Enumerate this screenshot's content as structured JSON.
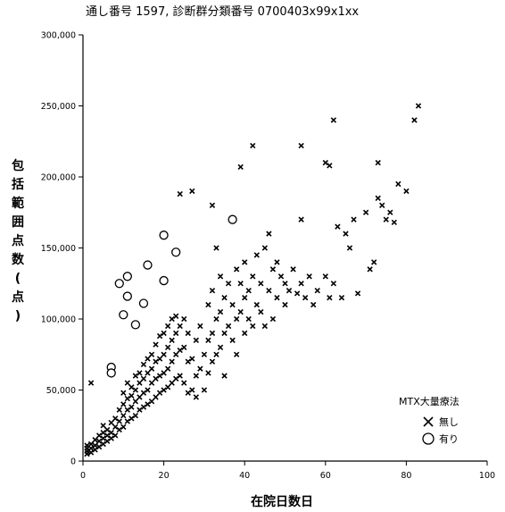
{
  "chart_data": {
    "type": "scatter",
    "title": "通し番号 1597, 診断群分類番号 0700403x99x1xx",
    "xlabel": "在院日数日",
    "ylabel": "包括範囲点数(点)",
    "xlim": [
      0,
      105
    ],
    "ylim": [
      0,
      310000
    ],
    "x_ticks": [
      "0",
      "20",
      "40",
      "60",
      "80",
      "100"
    ],
    "y_ticks": [
      "0",
      "50,000",
      "100,000",
      "150,000",
      "200,000",
      "250,000",
      "300,000"
    ],
    "grid": false,
    "legend": {
      "title": "MTX大量療法",
      "position": "bottom-right"
    },
    "series": [
      {
        "name": "無し",
        "marker": "x",
        "points": [
          [
            2,
            55000
          ],
          [
            1,
            5000
          ],
          [
            1,
            7000
          ],
          [
            1,
            9000
          ],
          [
            1,
            11000
          ],
          [
            2,
            6000
          ],
          [
            2,
            9000
          ],
          [
            2,
            12000
          ],
          [
            3,
            8000
          ],
          [
            3,
            11000
          ],
          [
            3,
            15000
          ],
          [
            4,
            10000
          ],
          [
            4,
            14000
          ],
          [
            4,
            18000
          ],
          [
            5,
            12000
          ],
          [
            5,
            16000
          ],
          [
            5,
            20000
          ],
          [
            5,
            25000
          ],
          [
            6,
            14000
          ],
          [
            6,
            18000
          ],
          [
            6,
            22000
          ],
          [
            7,
            16000
          ],
          [
            7,
            20000
          ],
          [
            7,
            27000
          ],
          [
            8,
            18000
          ],
          [
            8,
            24000
          ],
          [
            8,
            30000
          ],
          [
            9,
            22000
          ],
          [
            9,
            28000
          ],
          [
            9,
            36000
          ],
          [
            10,
            24000
          ],
          [
            10,
            32000
          ],
          [
            10,
            40000
          ],
          [
            10,
            48000
          ],
          [
            11,
            28000
          ],
          [
            11,
            36000
          ],
          [
            11,
            44000
          ],
          [
            11,
            55000
          ],
          [
            12,
            30000
          ],
          [
            12,
            38000
          ],
          [
            12,
            46000
          ],
          [
            12,
            52000
          ],
          [
            13,
            32000
          ],
          [
            13,
            42000
          ],
          [
            13,
            50000
          ],
          [
            13,
            60000
          ],
          [
            14,
            36000
          ],
          [
            14,
            45000
          ],
          [
            14,
            55000
          ],
          [
            14,
            62000
          ],
          [
            15,
            38000
          ],
          [
            15,
            48000
          ],
          [
            15,
            58000
          ],
          [
            15,
            68000
          ],
          [
            16,
            40000
          ],
          [
            16,
            50000
          ],
          [
            16,
            62000
          ],
          [
            16,
            72000
          ],
          [
            17,
            42000
          ],
          [
            17,
            55000
          ],
          [
            17,
            65000
          ],
          [
            17,
            75000
          ],
          [
            18,
            45000
          ],
          [
            18,
            58000
          ],
          [
            18,
            70000
          ],
          [
            18,
            82000
          ],
          [
            19,
            48000
          ],
          [
            19,
            60000
          ],
          [
            19,
            72000
          ],
          [
            19,
            88000
          ],
          [
            20,
            50000
          ],
          [
            20,
            62000
          ],
          [
            20,
            75000
          ],
          [
            20,
            90000
          ],
          [
            21,
            52000
          ],
          [
            21,
            65000
          ],
          [
            21,
            80000
          ],
          [
            21,
            95000
          ],
          [
            22,
            55000
          ],
          [
            22,
            70000
          ],
          [
            22,
            85000
          ],
          [
            22,
            100000
          ],
          [
            23,
            58000
          ],
          [
            23,
            75000
          ],
          [
            23,
            90000
          ],
          [
            23,
            102000
          ],
          [
            24,
            60000
          ],
          [
            24,
            78000
          ],
          [
            24,
            95000
          ],
          [
            25,
            55000
          ],
          [
            25,
            80000
          ],
          [
            25,
            100000
          ],
          [
            26,
            48000
          ],
          [
            26,
            70000
          ],
          [
            26,
            90000
          ],
          [
            27,
            50000
          ],
          [
            27,
            72000
          ],
          [
            28,
            45000
          ],
          [
            28,
            60000
          ],
          [
            28,
            85000
          ],
          [
            29,
            65000
          ],
          [
            29,
            95000
          ],
          [
            30,
            50000
          ],
          [
            30,
            75000
          ],
          [
            31,
            62000
          ],
          [
            31,
            85000
          ],
          [
            31,
            110000
          ],
          [
            32,
            70000
          ],
          [
            32,
            90000
          ],
          [
            32,
            120000
          ],
          [
            33,
            75000
          ],
          [
            33,
            100000
          ],
          [
            33,
            150000
          ],
          [
            34,
            80000
          ],
          [
            34,
            105000
          ],
          [
            34,
            130000
          ],
          [
            35,
            60000
          ],
          [
            35,
            90000
          ],
          [
            35,
            115000
          ],
          [
            36,
            95000
          ],
          [
            36,
            125000
          ],
          [
            37,
            85000
          ],
          [
            37,
            110000
          ],
          [
            38,
            75000
          ],
          [
            38,
            100000
          ],
          [
            38,
            135000
          ],
          [
            39,
            105000
          ],
          [
            39,
            125000
          ],
          [
            40,
            90000
          ],
          [
            40,
            115000
          ],
          [
            40,
            140000
          ],
          [
            41,
            100000
          ],
          [
            41,
            120000
          ],
          [
            42,
            95000
          ],
          [
            42,
            130000
          ],
          [
            43,
            110000
          ],
          [
            43,
            145000
          ],
          [
            44,
            105000
          ],
          [
            44,
            125000
          ],
          [
            45,
            95000
          ],
          [
            45,
            150000
          ],
          [
            46,
            120000
          ],
          [
            46,
            160000
          ],
          [
            47,
            100000
          ],
          [
            47,
            135000
          ],
          [
            48,
            115000
          ],
          [
            48,
            140000
          ],
          [
            49,
            130000
          ],
          [
            50,
            110000
          ],
          [
            50,
            125000
          ],
          [
            51,
            120000
          ],
          [
            52,
            135000
          ],
          [
            53,
            118000
          ],
          [
            54,
            125000
          ],
          [
            55,
            115000
          ],
          [
            56,
            130000
          ],
          [
            57,
            110000
          ],
          [
            58,
            120000
          ],
          [
            60,
            130000
          ],
          [
            61,
            115000
          ],
          [
            62,
            125000
          ],
          [
            63,
            165000
          ],
          [
            64,
            115000
          ],
          [
            65,
            160000
          ],
          [
            66,
            150000
          ],
          [
            67,
            170000
          ],
          [
            68,
            118000
          ],
          [
            70,
            175000
          ],
          [
            71,
            135000
          ],
          [
            72,
            140000
          ],
          [
            73,
            185000
          ],
          [
            74,
            180000
          ],
          [
            75,
            170000
          ],
          [
            76,
            175000
          ],
          [
            77,
            168000
          ],
          [
            78,
            195000
          ],
          [
            80,
            190000
          ],
          [
            82,
            240000
          ],
          [
            83,
            250000
          ],
          [
            24,
            188000
          ],
          [
            27,
            190000
          ],
          [
            32,
            180000
          ],
          [
            39,
            207000
          ],
          [
            42,
            222000
          ],
          [
            54,
            222000
          ],
          [
            60,
            210000
          ],
          [
            61,
            208000
          ],
          [
            62,
            240000
          ],
          [
            73,
            210000
          ],
          [
            54,
            170000
          ]
        ]
      },
      {
        "name": "有り",
        "marker": "o",
        "points": [
          [
            7,
            66000
          ],
          [
            7,
            62000
          ],
          [
            9,
            125000
          ],
          [
            10,
            103000
          ],
          [
            11,
            116000
          ],
          [
            11,
            130000
          ],
          [
            13,
            96000
          ],
          [
            15,
            111000
          ],
          [
            16,
            138000
          ],
          [
            20,
            127000
          ],
          [
            20,
            159000
          ],
          [
            23,
            147000
          ],
          [
            37,
            170000
          ]
        ]
      }
    ]
  }
}
